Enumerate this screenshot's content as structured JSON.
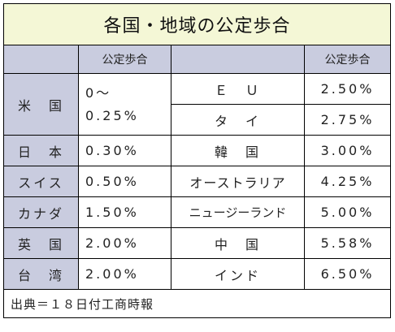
{
  "title": "各国・地域の公定歩合",
  "header": {
    "col2": "公定歩合",
    "col4": "公定歩合"
  },
  "rows": [
    {
      "left_country": "米　国",
      "left_rate_line1": "0～",
      "left_rate_line2": "0.25%",
      "right_country": "Ｅ　Ｕ",
      "right_rate": "2.50%"
    },
    {
      "right_country": "タ　イ",
      "right_rate": "2.75%"
    },
    {
      "left_country": "日　本",
      "left_rate": "0.30%",
      "right_country": "韓　国",
      "right_rate": "3.00%"
    },
    {
      "left_country": "スイス",
      "left_rate": "0.50%",
      "right_country": "オーストラリア",
      "right_rate": "4.25%"
    },
    {
      "left_country": "カナダ",
      "left_rate": "1.50%",
      "right_country": "ニュージーランド",
      "right_rate": "5.00%"
    },
    {
      "left_country": "英　国",
      "left_rate": "2.00%",
      "right_country": "中　国",
      "right_rate": "5.58%"
    },
    {
      "left_country": "台　湾",
      "left_rate": "2.00%",
      "right_country": "インド",
      "right_rate": "6.50%"
    }
  ],
  "footer": "出典＝１８日付工商時報"
}
